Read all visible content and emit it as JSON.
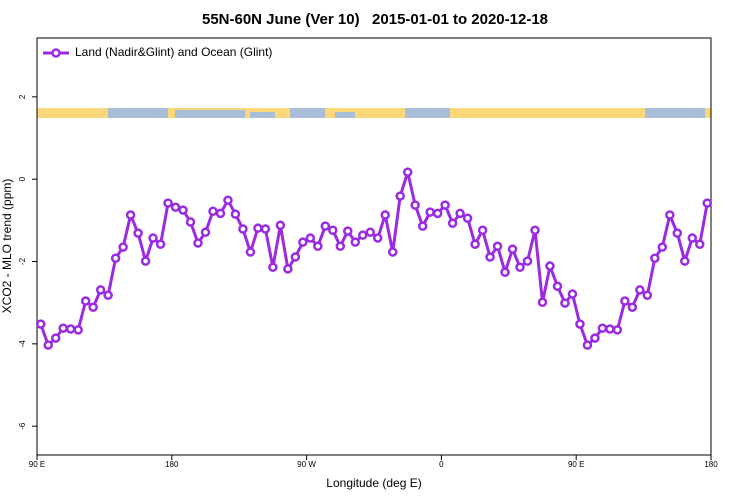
{
  "chart_data": {
    "type": "line",
    "title": "55N-60N June (Ver 10)   2015-01-01 to 2020-12-18",
    "x_label": "Longitude (deg E)",
    "y_label": "XCO2 - MLO trend (ppm)",
    "xlim": [
      90,
      540
    ],
    "ylim": [
      -6.7,
      3.43
    ],
    "xticks": [
      {
        "value": 90,
        "label": "90 E"
      },
      180,
      {
        "value": 270,
        "label": "90 W"
      },
      {
        "value": 360,
        "label": "0"
      },
      {
        "value": 450,
        "label": "90 E"
      },
      {
        "value": 540,
        "label": "180"
      }
    ],
    "yticks": [
      -6,
      -4,
      -2,
      0,
      2
    ],
    "grid": false,
    "legend": "topleft",
    "x": [
      92.5,
      97.5,
      102.5,
      107.5,
      112.5,
      117.5,
      122.5,
      127.5,
      132.5,
      137.5,
      142.5,
      147.5,
      152.5,
      157.5,
      162.5,
      167.5,
      172.5,
      177.5,
      182.5,
      187.5,
      192.5,
      197.5,
      202.5,
      207.5,
      212.5,
      217.5,
      222.5,
      227.5,
      232.5,
      237.5,
      242.5,
      247.5,
      252.5,
      257.5,
      262.5,
      267.5,
      272.5,
      277.5,
      282.5,
      287.5,
      292.5,
      297.5,
      302.5,
      307.5,
      312.5,
      317.5,
      322.5,
      327.5,
      332.5,
      337.5,
      342.5,
      347.5,
      352.5,
      357.5,
      362.5,
      367.5,
      372.5,
      377.5,
      382.5,
      387.5,
      392.5,
      397.5,
      402.5,
      407.5,
      412.5,
      417.5,
      422.5,
      427.5,
      432.5,
      437.5,
      442.5,
      447.5,
      452.5,
      457.5,
      462.5,
      467.5,
      472.5,
      477.5,
      482.5,
      487.5,
      492.5,
      497.5,
      502.5,
      507.5,
      512.5,
      517.5,
      522.5,
      527.5,
      532.5,
      537.5
    ],
    "series": [
      {
        "name": "Land (Nadir&Glint) and Ocean (Glint)",
        "color": "#9b2be0",
        "values": [
          -3.52,
          -4.03,
          -3.86,
          -3.62,
          -3.64,
          -3.66,
          -2.96,
          -3.11,
          -2.69,
          -2.82,
          -1.92,
          -1.65,
          -0.87,
          -1.31,
          -1.99,
          -1.43,
          -1.58,
          -0.58,
          -0.68,
          -0.75,
          -1.04,
          -1.55,
          -1.29,
          -0.78,
          -0.83,
          -0.51,
          -0.85,
          -1.21,
          -1.77,
          -1.19,
          -1.21,
          -2.14,
          -1.12,
          -2.18,
          -1.89,
          -1.53,
          -1.43,
          -1.63,
          -1.14,
          -1.24,
          -1.63,
          -1.26,
          -1.53,
          -1.36,
          -1.29,
          -1.43,
          -0.87,
          -1.77,
          -0.41,
          0.17,
          -0.63,
          -1.14,
          -0.8,
          -0.83,
          -0.63,
          -1.07,
          -0.83,
          -0.95,
          -1.58,
          -1.24,
          -1.89,
          -1.63,
          -2.26,
          -1.7,
          -2.14,
          -1.99,
          -1.24,
          -2.99,
          -2.11,
          -2.6,
          -3.01,
          -2.79,
          -3.52,
          -4.03,
          -3.86,
          -3.62,
          -3.64,
          -3.66,
          -2.96,
          -3.11,
          -2.69,
          -2.82,
          -1.92,
          -1.65,
          -0.87,
          -1.31,
          -1.99,
          -1.43,
          -1.58,
          -0.58
        ]
      }
    ]
  }
}
